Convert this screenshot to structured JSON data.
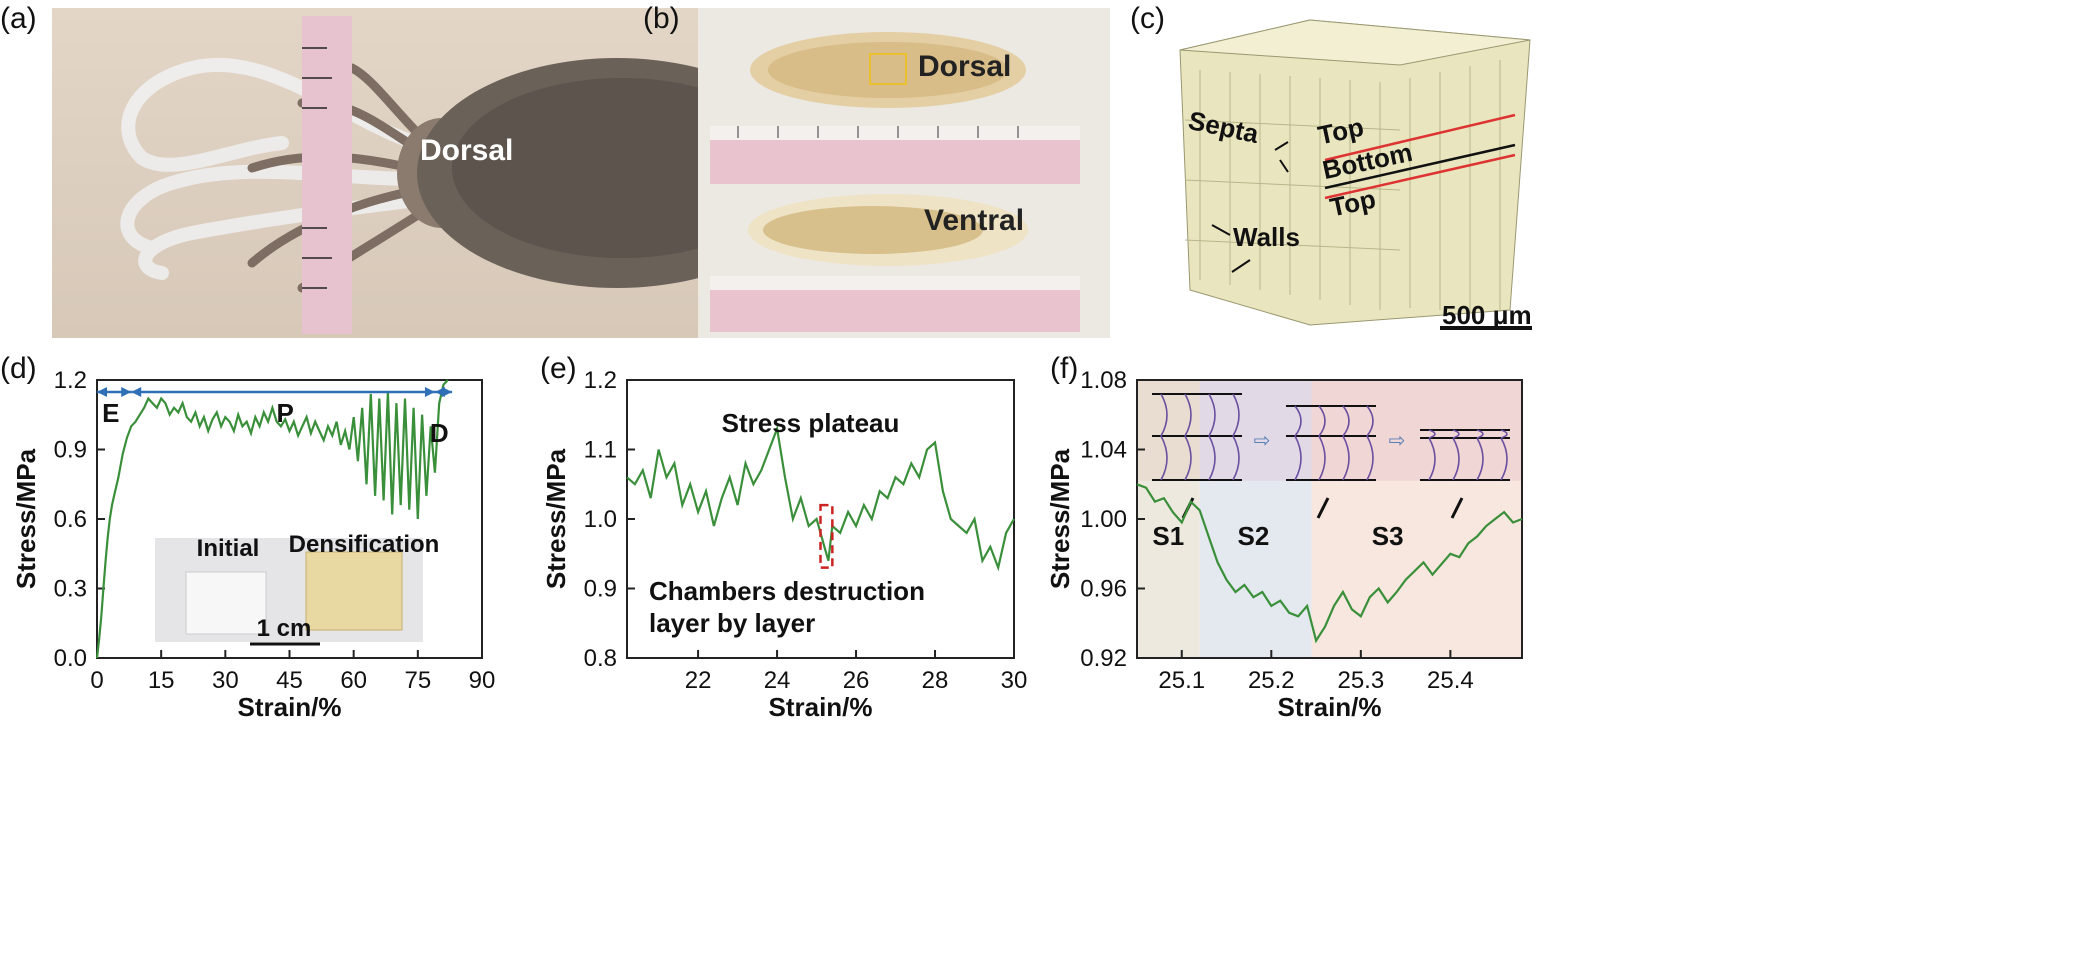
{
  "panels": {
    "a": {
      "label": "(a)",
      "dorsal": "Dorsal"
    },
    "b": {
      "label": "(b)",
      "dorsal": "Dorsal",
      "ventral": "Ventral"
    },
    "c": {
      "label": "(c)",
      "septa": "Septa",
      "top1": "Top",
      "bottom": "Bottom",
      "top2": "Top",
      "walls": "Walls",
      "scale": "500 μm"
    },
    "d": {
      "label": "(d)"
    },
    "e": {
      "label": "(e)"
    },
    "f": {
      "label": "(f)"
    }
  },
  "colors": {
    "line": "#3a8f3a",
    "accent": "#2f6fb5",
    "dashed": "#cc2222"
  },
  "chart_data": [
    {
      "type": "line",
      "xlabel": "Strain/%",
      "ylabel": "Stress/MPa",
      "xlim": [
        0,
        90
      ],
      "ylim": [
        0,
        1.2
      ],
      "xticks": [
        "0",
        "15",
        "30",
        "45",
        "60",
        "75",
        "90"
      ],
      "yticks": [
        "0.0",
        "0.3",
        "0.6",
        "0.9",
        "1.2"
      ],
      "regions": [
        "E",
        "P",
        "D"
      ],
      "region_bounds": [
        0,
        8,
        79,
        83
      ],
      "inset": {
        "initial": "Initial",
        "densification": "Densification",
        "scale": "1 cm"
      },
      "series": [
        {
          "x": [
            0,
            0.5,
            1,
            1.5,
            2,
            2.5,
            3,
            3.5,
            4,
            5,
            6,
            7,
            8,
            9,
            10,
            11,
            12,
            13,
            14,
            15,
            16,
            17,
            18,
            19,
            20,
            21,
            22,
            23,
            24,
            25,
            26,
            27,
            28,
            29,
            30,
            31,
            32,
            33,
            34,
            35,
            36,
            37,
            38,
            39,
            40,
            41,
            42,
            43,
            44,
            45,
            46,
            47,
            48,
            49,
            50,
            51,
            52,
            53,
            54,
            55,
            56,
            57,
            58,
            59,
            60,
            61,
            62,
            63,
            64,
            65,
            66,
            67,
            68,
            69,
            70,
            71,
            72,
            73,
            74,
            75,
            76,
            77,
            78,
            79,
            80,
            81,
            82
          ],
          "y": [
            0,
            0.08,
            0.18,
            0.3,
            0.42,
            0.52,
            0.6,
            0.66,
            0.7,
            0.78,
            0.88,
            0.95,
            1.0,
            1.02,
            1.05,
            1.08,
            1.12,
            1.1,
            1.08,
            1.12,
            1.1,
            1.05,
            1.08,
            1.06,
            1.1,
            1.04,
            1.02,
            1.06,
            1.0,
            1.04,
            0.98,
            1.03,
            1.06,
            1.0,
            1.04,
            1.02,
            0.98,
            1.05,
            1.0,
            1.02,
            0.97,
            1.04,
            1.0,
            1.06,
            1.02,
            1.08,
            1.02,
            1.0,
            1.03,
            0.98,
            1.02,
            0.96,
            1.0,
            1.04,
            0.97,
            1.02,
            0.98,
            0.94,
            1.0,
            0.96,
            1.02,
            0.92,
            0.98,
            0.9,
            1.04,
            0.85,
            1.08,
            0.75,
            1.14,
            0.7,
            1.12,
            0.68,
            1.15,
            0.62,
            1.1,
            0.66,
            1.12,
            0.64,
            1.08,
            0.6,
            1.05,
            0.7,
            1.0,
            0.8,
            1.1,
            1.18,
            1.2
          ]
        }
      ]
    },
    {
      "type": "line",
      "xlabel": "Strain/%",
      "ylabel": "Stress/MPa",
      "xlim": [
        20.2,
        30
      ],
      "ylim": [
        0.8,
        1.2
      ],
      "xticks": [
        "22",
        "24",
        "26",
        "28",
        "30"
      ],
      "yticks": [
        "0.8",
        "0.9",
        "1.0",
        "1.1",
        "1.2"
      ],
      "annotations": [
        "Stress plateau",
        "Chambers destruction",
        "layer by layer"
      ],
      "highlight": {
        "x": [
          25.1,
          25.4
        ],
        "y": [
          0.93,
          1.02
        ]
      },
      "series": [
        {
          "x": [
            20.2,
            20.4,
            20.6,
            20.8,
            21.0,
            21.2,
            21.4,
            21.6,
            21.8,
            22.0,
            22.2,
            22.4,
            22.6,
            22.8,
            23.0,
            23.2,
            23.4,
            23.6,
            23.8,
            24.0,
            24.2,
            24.4,
            24.6,
            24.8,
            25.0,
            25.2,
            25.3,
            25.4,
            25.6,
            25.8,
            26.0,
            26.2,
            26.4,
            26.6,
            26.8,
            27.0,
            27.2,
            27.4,
            27.6,
            27.8,
            28.0,
            28.2,
            28.4,
            28.6,
            28.8,
            29.0,
            29.2,
            29.4,
            29.6,
            29.8,
            30.0
          ],
          "y": [
            1.06,
            1.05,
            1.07,
            1.03,
            1.1,
            1.06,
            1.08,
            1.02,
            1.05,
            1.01,
            1.04,
            0.99,
            1.03,
            1.06,
            1.02,
            1.08,
            1.05,
            1.07,
            1.1,
            1.13,
            1.06,
            1.0,
            1.03,
            0.99,
            1.0,
            0.96,
            0.94,
            0.99,
            0.98,
            1.01,
            0.99,
            1.02,
            1.0,
            1.04,
            1.03,
            1.06,
            1.05,
            1.08,
            1.06,
            1.1,
            1.11,
            1.04,
            1.0,
            0.99,
            0.98,
            1.0,
            0.94,
            0.96,
            0.93,
            0.98,
            1.0
          ]
        }
      ]
    },
    {
      "type": "line",
      "xlabel": "Strain/%",
      "ylabel": "Stress/MPa",
      "xlim": [
        25.05,
        25.48
      ],
      "ylim": [
        0.92,
        1.08
      ],
      "xticks": [
        "25.1",
        "25.2",
        "25.3",
        "25.4"
      ],
      "yticks": [
        "0.92",
        "0.96",
        "1.00",
        "1.04",
        "1.08"
      ],
      "stages": [
        "S1",
        "S2",
        "S3"
      ],
      "stage_bounds": [
        25.05,
        25.12,
        25.245,
        25.48
      ],
      "series": [
        {
          "x": [
            25.05,
            25.06,
            25.07,
            25.08,
            25.09,
            25.1,
            25.11,
            25.12,
            25.13,
            25.14,
            25.15,
            25.16,
            25.17,
            25.18,
            25.19,
            25.2,
            25.21,
            25.22,
            25.23,
            25.24,
            25.25,
            25.26,
            25.27,
            25.28,
            25.29,
            25.3,
            25.31,
            25.32,
            25.33,
            25.34,
            25.35,
            25.36,
            25.37,
            25.38,
            25.39,
            25.4,
            25.41,
            25.42,
            25.43,
            25.44,
            25.45,
            25.46,
            25.47,
            25.48
          ],
          "y": [
            1.02,
            1.018,
            1.01,
            1.012,
            1.004,
            0.998,
            1.01,
            1.005,
            0.99,
            0.975,
            0.965,
            0.958,
            0.962,
            0.955,
            0.958,
            0.95,
            0.953,
            0.946,
            0.944,
            0.95,
            0.93,
            0.938,
            0.95,
            0.958,
            0.948,
            0.944,
            0.955,
            0.96,
            0.952,
            0.958,
            0.965,
            0.97,
            0.975,
            0.968,
            0.974,
            0.98,
            0.978,
            0.986,
            0.99,
            0.996,
            1.0,
            1.004,
            0.998,
            1.0
          ]
        }
      ]
    }
  ]
}
